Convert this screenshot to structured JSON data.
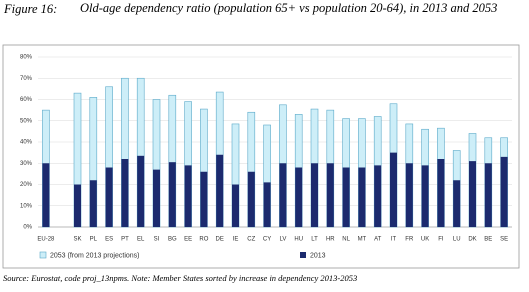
{
  "chart_data": {
    "type": "bar",
    "overlap": true,
    "figure_label": "Figure  16:",
    "title": "Old-age dependency ratio (population 65+ vs population 20-64), in 2013 and 2053",
    "source": "Source: Eurostat, code proj_13npms. Note: Member States sorted by increase in dependency 2013-2053",
    "categories": [
      "EU-28",
      null,
      "SK",
      "PL",
      "ES",
      "PT",
      "EL",
      "SI",
      "BG",
      "EE",
      "RO",
      "DE",
      "IE",
      "CZ",
      "CY",
      "LV",
      "HU",
      "LT",
      "HR",
      "NL",
      "MT",
      "AT",
      "IT",
      "FR",
      "UK",
      "FI",
      "LU",
      "DK",
      "BE",
      "SE"
    ],
    "series": [
      {
        "name": "2053 (from 2013 projections)",
        "color": "#cdeef8",
        "stroke": "#5aa9c9",
        "values": [
          55,
          null,
          63,
          61,
          66,
          70,
          70,
          60,
          62,
          59,
          55.5,
          63.5,
          48.5,
          54,
          48,
          57.5,
          53,
          55.5,
          55,
          51,
          51,
          52,
          58,
          48.5,
          46,
          46.5,
          36,
          44,
          42,
          42
        ]
      },
      {
        "name": "2013",
        "color": "#1c2a6e",
        "values": [
          30,
          null,
          20,
          22,
          28,
          32,
          33.5,
          27,
          30.5,
          29,
          26,
          34,
          20,
          26,
          21,
          30,
          28,
          30,
          30,
          28,
          28,
          29,
          35,
          30,
          29,
          32,
          22,
          31,
          30,
          33
        ]
      }
    ],
    "ylim": [
      0,
      80
    ],
    "yticks": [
      {
        "value": 0,
        "label": "0%"
      },
      {
        "value": 10,
        "label": "10%"
      },
      {
        "value": 20,
        "label": "20%"
      },
      {
        "value": 30,
        "label": "30%"
      },
      {
        "value": 40,
        "label": "40%"
      },
      {
        "value": 50,
        "label": "50%"
      },
      {
        "value": 60,
        "label": "60%"
      },
      {
        "value": 70,
        "label": "70%"
      },
      {
        "value": 80,
        "label": "80%"
      }
    ],
    "grid": true
  }
}
